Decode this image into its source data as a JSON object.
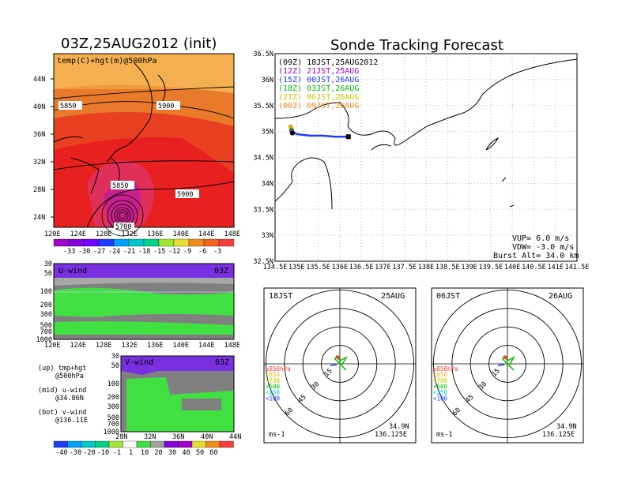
{
  "title_left": "03Z,25AUG2012 (init)",
  "title_right": "Sonde Tracking Forecast",
  "temp_panel": {
    "label": "temp(C)+hgt(m)@500hPa",
    "lat_ticks": [
      "44N",
      "40N",
      "36N",
      "32N",
      "28N",
      "24N"
    ],
    "lon_ticks": [
      "120E",
      "124E",
      "128E",
      "132E",
      "136E",
      "140E",
      "144E",
      "148E"
    ],
    "contour_labels": [
      "5850",
      "5900",
      "5850",
      "5900",
      "5700"
    ],
    "colorbar": [
      "-33",
      "-30",
      "-27",
      "-24",
      "-21",
      "-18",
      "-15",
      "-12",
      "-9",
      "-6",
      "-3"
    ],
    "colorbar_colors": [
      "#a000c8",
      "#8200dc",
      "#6e00ff",
      "#1e3cff",
      "#00a0ff",
      "#00c8c8",
      "#00d28c",
      "#a0e632",
      "#e6dc32",
      "#f08c1e",
      "#f0641e",
      "#fa3c3c"
    ]
  },
  "uwind_panel": {
    "label": "U-wind",
    "time": "03Z",
    "p_ticks": [
      "30",
      "50",
      "100",
      "200",
      "300",
      "500",
      "700",
      "1000"
    ],
    "lon_ticks": [
      "120E",
      "124E",
      "128E",
      "132E",
      "136E",
      "140E",
      "144E",
      "148E"
    ]
  },
  "vwind_panel": {
    "label": "V-wind",
    "time": "03Z",
    "p_ticks": [
      "30",
      "50",
      "100",
      "200",
      "300",
      "500",
      "700",
      "1000"
    ],
    "lat_ticks": [
      "28N",
      "32N",
      "36N",
      "40N",
      "44N"
    ]
  },
  "wind_colorbar": [
    "-40",
    "-30",
    "-20",
    "-10",
    "-1",
    "1",
    "10",
    "20",
    "30",
    "40",
    "50",
    "60"
  ],
  "wind_colorbar_colors": [
    "#1e3cff",
    "#00a0ff",
    "#00c8c8",
    "#00d28c",
    "#a0e632",
    "#ffffff",
    "#40e040",
    "#a0a0a0",
    "#8200dc",
    "#a000c8",
    "#e6dc32",
    "#f08c1e",
    "#fa3c3c"
  ],
  "notes": [
    {
      "a": "(up) tmp+hgt",
      "b": "@500hPa"
    },
    {
      "a": "(mid) u-wind",
      "b": "@34.86N"
    },
    {
      "a": "(bot) v-wind",
      "b": "@136.11E"
    }
  ],
  "track_panel": {
    "lat_ticks": [
      "36.5N",
      "36N",
      "35.5N",
      "35N",
      "34.5N",
      "34N",
      "33.5N",
      "33N",
      "32.5N"
    ],
    "lon_ticks": [
      "134.5E",
      "135E",
      "135.5E",
      "136E",
      "136.5E",
      "137E",
      "137.5E",
      "138E",
      "138.5E",
      "139E",
      "139.5E",
      "140E",
      "140.5E",
      "141E",
      "141.5E"
    ],
    "legend": [
      {
        "text": "(09Z) 18JST,25AUG2012",
        "color": "#000000"
      },
      {
        "text": "(12Z) 21JST,25AUG",
        "color": "#a000c8"
      },
      {
        "text": "(15Z) 00JST,26AUG",
        "color": "#1e3cff"
      },
      {
        "text": "(18Z) 03JST,26AUG",
        "color": "#00c000"
      },
      {
        "text": "(21Z) 06JST,26AUG",
        "color": "#c8c800"
      },
      {
        "text": "(00Z) 09JST,26AUG",
        "color": "#f08c1e"
      }
    ],
    "vup": "VUP=  6.0 m/s",
    "vdw": "VDW= -3.0 m/s",
    "burst": "Burst Alt= 34.0 km"
  },
  "hodo1": {
    "time": "18JST",
    "date": "25AUG",
    "lat": "34.9N",
    "lon": "136.125E",
    "unit": "ms-1"
  },
  "hodo2": {
    "time": "06JST",
    "date": "26AUG",
    "lat": "34.9N",
    "lon": "136.125E",
    "unit": "ms-1"
  },
  "hodo_rings": [
    "15",
    "30",
    "45",
    "60"
  ],
  "hodo_levels": [
    {
      "text": "≥850hPa",
      "color": "#fa3c3c"
    },
    {
      "text": "<850",
      "color": "#f0b41e"
    },
    {
      "text": "<700",
      "color": "#c8c800"
    },
    {
      "text": "<500",
      "color": "#00c000"
    },
    {
      "text": "<250",
      "color": "#00c8c8"
    },
    {
      "text": "<100",
      "color": "#1e3cff"
    }
  ],
  "chart_data": {
    "type": "heatmap",
    "sonde_track": {
      "lon": [
        134.9,
        135.0,
        135.3,
        135.6,
        135.9,
        136.0,
        136.2
      ],
      "lat": [
        35.0,
        34.95,
        34.92,
        34.92,
        34.9,
        34.9,
        34.9
      ],
      "xlim": [
        134.5,
        141.5
      ],
      "ylim": [
        32.5,
        36.5
      ]
    }
  }
}
